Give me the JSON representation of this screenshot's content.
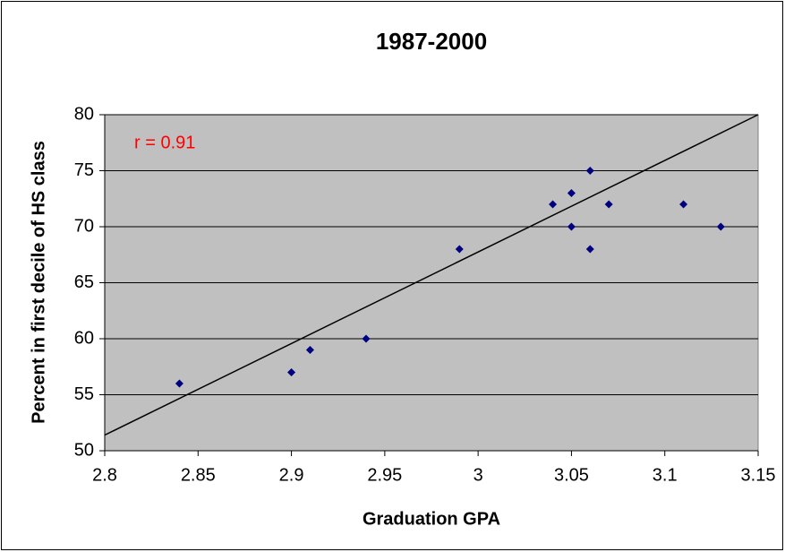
{
  "chart_data": {
    "type": "scatter",
    "title": "1987-2000",
    "x_label": "Graduation GPA",
    "y_label": "Percent in first decile of HS class",
    "annotation": "r = 0.91",
    "series": [
      {
        "color": "#000080",
        "x": [
          2.84,
          2.9,
          2.91,
          2.94,
          2.99,
          3.04,
          3.05,
          3.05,
          3.06,
          3.06,
          3.07,
          3.11,
          3.13
        ],
        "values": [
          56,
          57,
          59,
          60,
          68,
          72,
          73,
          70,
          75,
          68,
          72,
          72,
          70
        ]
      }
    ],
    "trendline": {
      "x": [
        2.8,
        3.15
      ],
      "values": [
        51.4,
        80
      ]
    },
    "xlim": [
      2.8,
      3.15
    ],
    "xticks": [
      2.8,
      2.85,
      2.9,
      2.95,
      3,
      3.05,
      3.1,
      3.15
    ],
    "ylim": [
      50,
      80
    ],
    "yticks": [
      50,
      55,
      60,
      65,
      70,
      75,
      80
    ],
    "grid": true,
    "plot_background": "#c0c0c0",
    "annotation_color": "#ff0000"
  }
}
